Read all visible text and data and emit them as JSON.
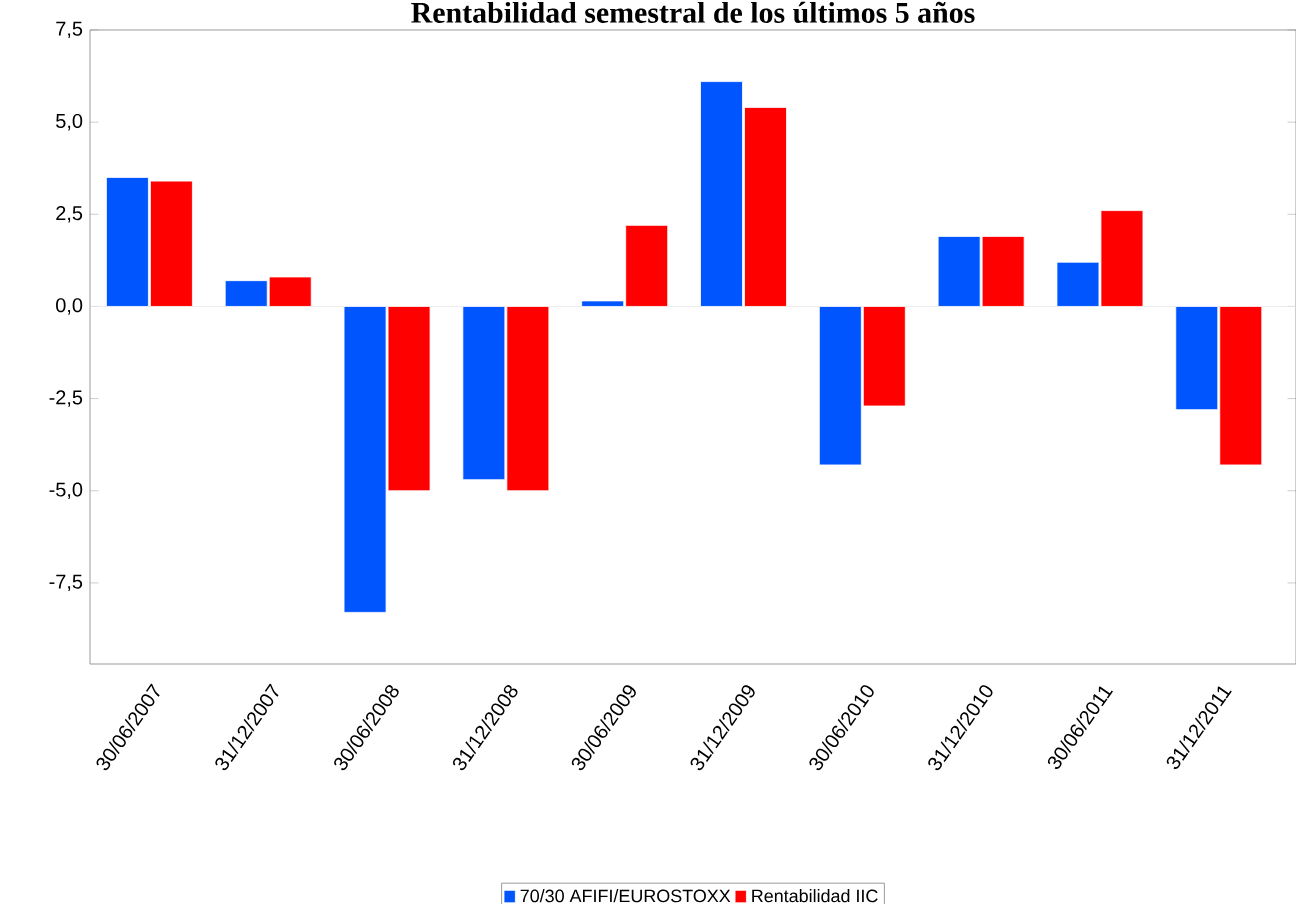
{
  "chart_data": {
    "type": "bar",
    "title": "Rentabilidad semestral de los últimos 5 años",
    "categories": [
      "30/06/2007",
      "31/12/2007",
      "30/06/2008",
      "31/12/2008",
      "30/06/2009",
      "31/12/2009",
      "30/06/2010",
      "31/12/2010",
      "30/06/2011",
      "31/12/2011"
    ],
    "series": [
      {
        "name": "70/30 AFIFI/EUROSTOXX",
        "color": "#0055ff",
        "values": [
          3.5,
          0.7,
          -8.3,
          -4.7,
          0.15,
          6.1,
          -4.3,
          1.9,
          1.2,
          -2.8
        ]
      },
      {
        "name": "Rentabilidad IIC",
        "color": "#ff0000",
        "values": [
          3.4,
          0.8,
          -5.0,
          -5.0,
          2.2,
          5.4,
          -2.7,
          1.9,
          2.6,
          -4.3
        ]
      }
    ],
    "ylim": [
      -9.7,
      7.5
    ],
    "yticks": [
      {
        "value": -7.5,
        "label": "-7,5"
      },
      {
        "value": -5,
        "label": "-5,0"
      },
      {
        "value": -2.5,
        "label": "-2,5"
      },
      {
        "value": 0,
        "label": "0,0"
      },
      {
        "value": 2.5,
        "label": "2,5"
      },
      {
        "value": 5,
        "label": "5,0"
      },
      {
        "value": 7.5,
        "label": "7,5"
      }
    ],
    "ref_lines": [
      {
        "axis": "y",
        "value": 0,
        "color": "#e6e6e6"
      }
    ],
    "legend": "bottom"
  }
}
